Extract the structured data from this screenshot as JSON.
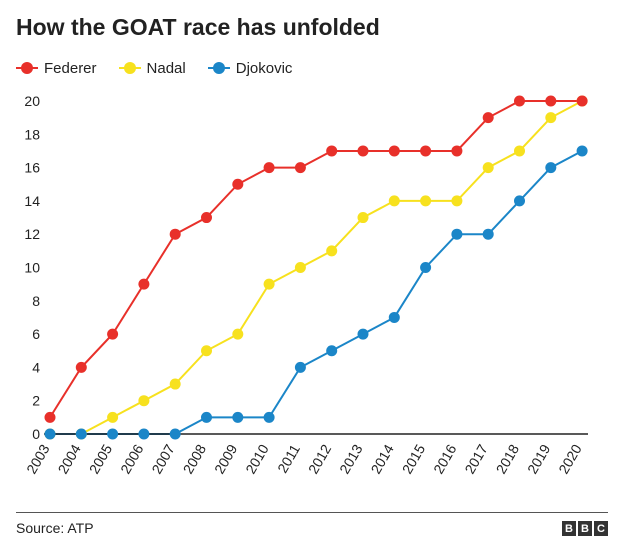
{
  "title": "How the GOAT race has unfolded",
  "source": "Source: ATP",
  "logo_letters": [
    "B",
    "B",
    "C"
  ],
  "chart_data": {
    "type": "line",
    "x": [
      "2003",
      "2004",
      "2005",
      "2006",
      "2007",
      "2008",
      "2009",
      "2010",
      "2011",
      "2012",
      "2013",
      "2014",
      "2015",
      "2016",
      "2017",
      "2018",
      "2019",
      "2020"
    ],
    "ylim": [
      0,
      20
    ],
    "yticks": [
      0,
      2,
      4,
      6,
      8,
      10,
      12,
      14,
      16,
      18,
      20
    ],
    "grid": false,
    "legend_position": "top-left",
    "series": [
      {
        "name": "Nadal",
        "color": "#f7e11e",
        "values": [
          0,
          0,
          1,
          2,
          3,
          5,
          6,
          9,
          10,
          11,
          13,
          14,
          14,
          14,
          16,
          17,
          19,
          20
        ]
      },
      {
        "name": "Djokovic",
        "color": "#1b86c8",
        "values": [
          0,
          0,
          0,
          0,
          0,
          1,
          1,
          1,
          4,
          5,
          6,
          7,
          10,
          12,
          12,
          14,
          16,
          17
        ]
      },
      {
        "name": "Federer",
        "color": "#e8302a",
        "values": [
          1,
          4,
          6,
          9,
          12,
          13,
          15,
          16,
          16,
          17,
          17,
          17,
          17,
          17,
          19,
          20,
          20,
          20
        ]
      }
    ],
    "legend_order": [
      "Federer",
      "Nadal",
      "Djokovic"
    ]
  }
}
